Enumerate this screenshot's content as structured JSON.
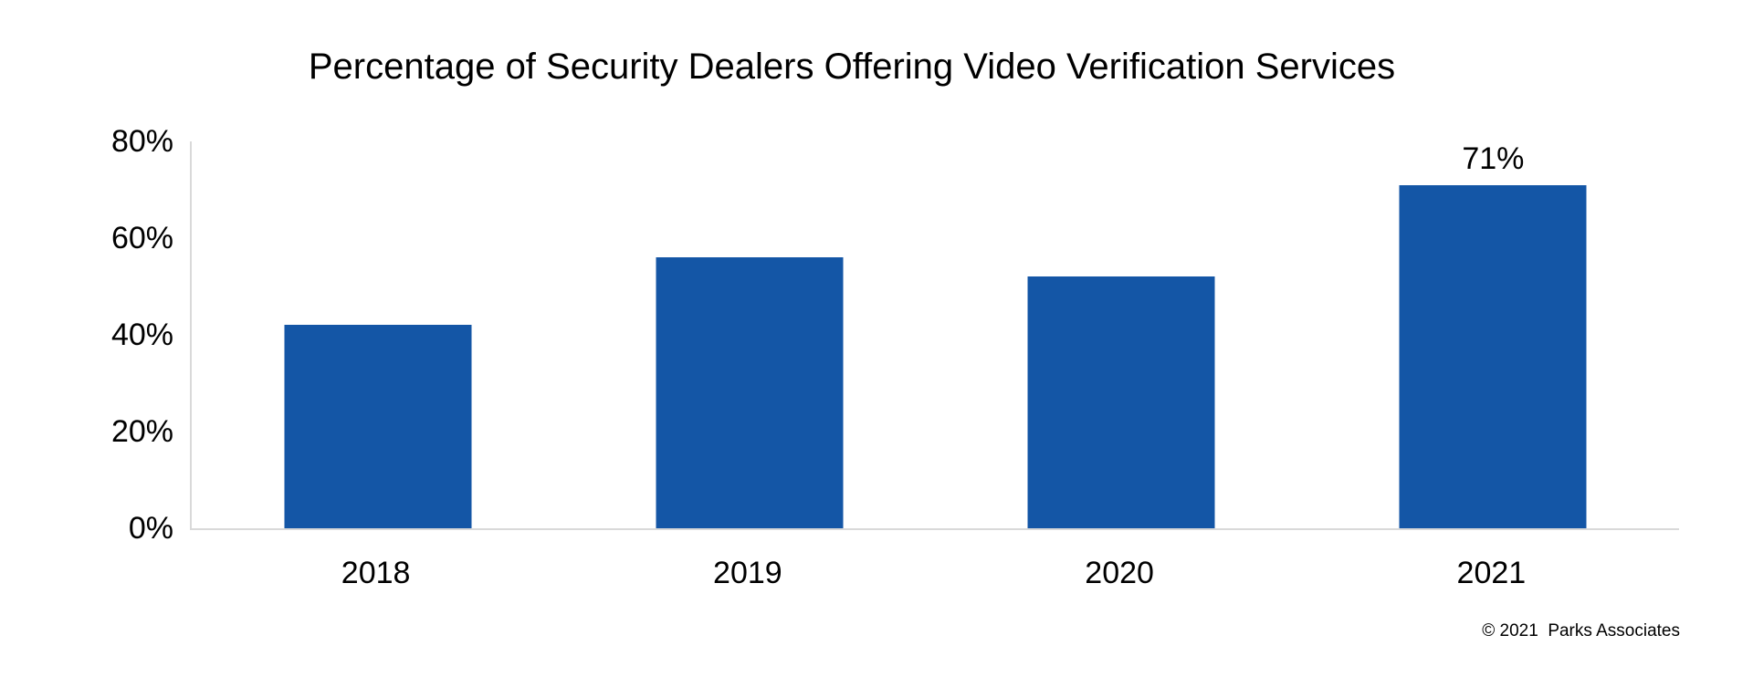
{
  "chart_data": {
    "type": "bar",
    "title": "Percentage of Security Dealers Offering Video Verification Services",
    "categories": [
      "2018",
      "2019",
      "2020",
      "2021"
    ],
    "values": [
      42,
      56,
      52,
      71
    ],
    "data_labels": [
      "",
      "",
      "",
      "71%"
    ],
    "xlabel": "",
    "ylabel": "",
    "ylim": [
      0,
      80
    ],
    "yticks": [
      {
        "value": 0,
        "label": "0%"
      },
      {
        "value": 20,
        "label": "20%"
      },
      {
        "value": 40,
        "label": "40%"
      },
      {
        "value": 60,
        "label": "60%"
      },
      {
        "value": 80,
        "label": "80%"
      }
    ],
    "grid": false,
    "legend": "none",
    "bar_color": "#1456A6",
    "axis_color": "#D9D9D9",
    "text_color": "#000000"
  },
  "footer": {
    "copyright": "© 2021  Parks Associates"
  }
}
